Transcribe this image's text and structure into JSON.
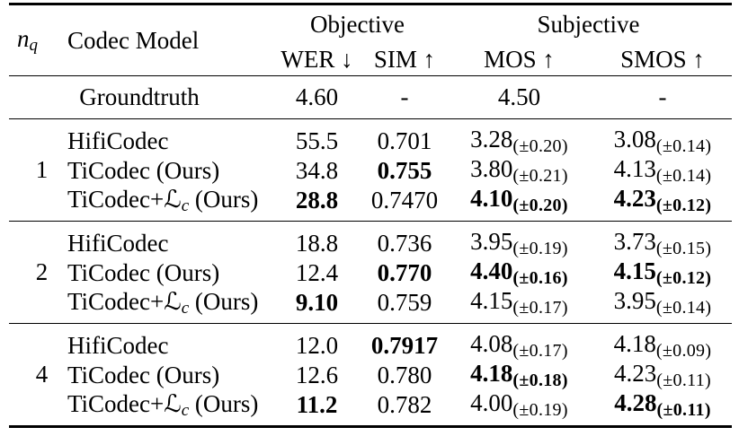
{
  "colors": {
    "text": "#000000",
    "rule": "#000000",
    "background": "#ffffff"
  },
  "table": {
    "header": {
      "nq_base": "n",
      "nq_sub": "q",
      "model_label": "Codec Model",
      "group_objective": "Objective",
      "group_subjective": "Subjective",
      "col_wer": "WER ↓",
      "col_sim": "SIM ↑",
      "col_mos": "MOS ↑",
      "col_smos": "SMOS ↑"
    },
    "groundtruth": {
      "label": "Groundtruth",
      "wer": "4.60",
      "sim": "-",
      "mos": "4.50",
      "smos": "-"
    },
    "groups": [
      {
        "nq": "1",
        "rows": [
          {
            "model": [
              {
                "t": "HifiCodec"
              }
            ],
            "wer": {
              "v": "55.5",
              "b": false
            },
            "sim": {
              "v": "0.701",
              "b": false
            },
            "mos": {
              "v": "3.28",
              "s": "(±0.20)",
              "b": false
            },
            "smos": {
              "v": "3.08",
              "s": "(±0.14)",
              "b": false
            }
          },
          {
            "model": [
              {
                "t": "TiCodec (Ours)"
              }
            ],
            "wer": {
              "v": "34.8",
              "b": false
            },
            "sim": {
              "v": "0.755",
              "b": true
            },
            "mos": {
              "v": "3.80",
              "s": "(±0.21)",
              "b": false
            },
            "smos": {
              "v": "4.13",
              "s": "(±0.14)",
              "b": false
            }
          },
          {
            "model": [
              {
                "t": "TiCodec+"
              },
              {
                "t": "ℒ",
                "k": "cal"
              },
              {
                "t": "c",
                "k": "sub"
              },
              {
                "t": " (Ours)"
              }
            ],
            "wer": {
              "v": "28.8",
              "b": true
            },
            "sim": {
              "v": "0.7470",
              "b": false
            },
            "mos": {
              "v": "4.10",
              "s": "(±0.20)",
              "b": true
            },
            "smos": {
              "v": "4.23",
              "s": "(±0.12)",
              "b": true
            }
          }
        ]
      },
      {
        "nq": "2",
        "rows": [
          {
            "model": [
              {
                "t": "HifiCodec"
              }
            ],
            "wer": {
              "v": "18.8",
              "b": false
            },
            "sim": {
              "v": "0.736",
              "b": false
            },
            "mos": {
              "v": "3.95",
              "s": "(±0.19)",
              "b": false
            },
            "smos": {
              "v": "3.73",
              "s": "(±0.15)",
              "b": false
            }
          },
          {
            "model": [
              {
                "t": "TiCodec (Ours)"
              }
            ],
            "wer": {
              "v": "12.4",
              "b": false
            },
            "sim": {
              "v": "0.770",
              "b": true
            },
            "mos": {
              "v": "4.40",
              "s": "(±0.16)",
              "b": true
            },
            "smos": {
              "v": "4.15",
              "s": "(±0.12)",
              "b": true
            }
          },
          {
            "model": [
              {
                "t": "TiCodec+"
              },
              {
                "t": "ℒ",
                "k": "cal"
              },
              {
                "t": "c",
                "k": "sub"
              },
              {
                "t": " (Ours)"
              }
            ],
            "wer": {
              "v": "9.10",
              "b": true
            },
            "sim": {
              "v": "0.759",
              "b": false
            },
            "mos": {
              "v": "4.15",
              "s": "(±0.17)",
              "b": false
            },
            "smos": {
              "v": "3.95",
              "s": "(±0.14)",
              "b": false
            }
          }
        ]
      },
      {
        "nq": "4",
        "rows": [
          {
            "model": [
              {
                "t": "HifiCodec"
              }
            ],
            "wer": {
              "v": "12.0",
              "b": false
            },
            "sim": {
              "v": "0.7917",
              "b": true
            },
            "mos": {
              "v": "4.08",
              "s": "(±0.17)",
              "b": false
            },
            "smos": {
              "v": "4.18",
              "s": "(±0.09)",
              "b": false
            }
          },
          {
            "model": [
              {
                "t": "TiCodec (Ours)"
              }
            ],
            "wer": {
              "v": "12.6",
              "b": false
            },
            "sim": {
              "v": "0.780",
              "b": false
            },
            "mos": {
              "v": "4.18",
              "s": "(±0.18)",
              "b": true
            },
            "smos": {
              "v": "4.23",
              "s": "(±0.11)",
              "b": false
            }
          },
          {
            "model": [
              {
                "t": "TiCodec+"
              },
              {
                "t": "ℒ",
                "k": "cal"
              },
              {
                "t": "c",
                "k": "sub"
              },
              {
                "t": " (Ours)"
              }
            ],
            "wer": {
              "v": "11.2",
              "b": true
            },
            "sim": {
              "v": "0.782",
              "b": false
            },
            "mos": {
              "v": "4.00",
              "s": "(±0.19)",
              "b": false
            },
            "smos": {
              "v": "4.28",
              "s": "(±0.11)",
              "b": true
            }
          }
        ]
      }
    ]
  }
}
